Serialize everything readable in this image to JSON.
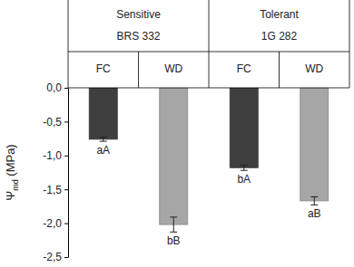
{
  "chart_data": {
    "type": "bar",
    "groups": [
      {
        "labels": [
          "Sensitive",
          "BRS 332"
        ],
        "size": 2
      },
      {
        "labels": [
          "Tolerant",
          "1G 282"
        ],
        "size": 2
      }
    ],
    "categories": [
      "FC",
      "WD",
      "FC",
      "WD"
    ],
    "values": [
      -0.76,
      -2.02,
      -1.18,
      -1.67
    ],
    "errors": [
      0.03,
      0.11,
      0.04,
      0.06
    ],
    "annotations": [
      "aA",
      "bB",
      "bA",
      "aB"
    ],
    "colors": [
      "#3f3f3f",
      "#a6a6a6",
      "#3f3f3f",
      "#a6a6a6"
    ],
    "y_label": [
      "Ψ",
      "md",
      " (MPa)"
    ],
    "ylim": [
      -2.5,
      0
    ],
    "yticks": [
      {
        "value": 0,
        "label": "0,0"
      },
      {
        "value": -0.5,
        "label": "-0,5"
      },
      {
        "value": -1,
        "label": "-1,0"
      },
      {
        "value": -1.5,
        "label": "-1,5"
      },
      {
        "value": -2,
        "label": "-2,0"
      },
      {
        "value": -2.5,
        "label": "-2,5"
      }
    ]
  }
}
